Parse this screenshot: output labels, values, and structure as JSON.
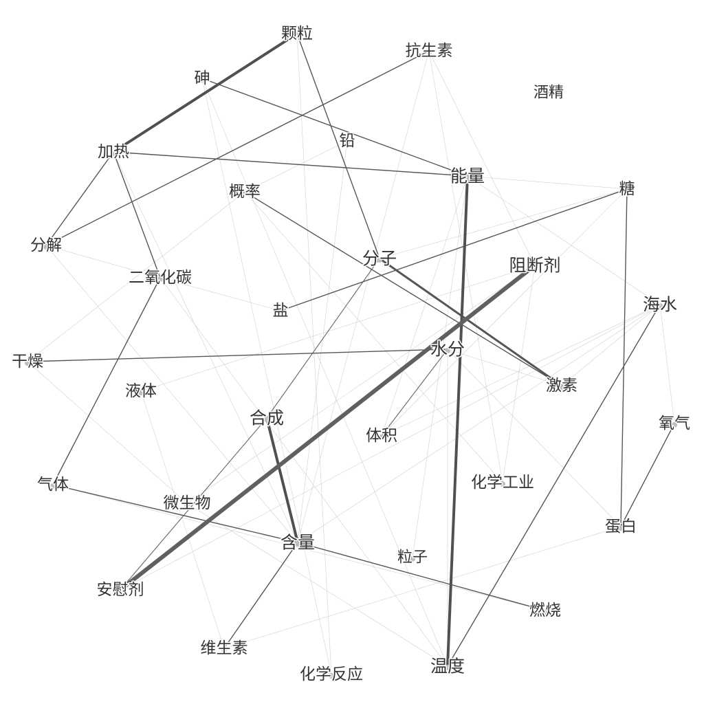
{
  "graph": {
    "nodes": [
      {
        "id": "keli",
        "label": "颗粒",
        "size": "m"
      },
      {
        "id": "kangshengsu",
        "label": "抗生素",
        "size": "m"
      },
      {
        "id": "shen",
        "label": "砷",
        "size": "m"
      },
      {
        "id": "jiujing",
        "label": "酒精",
        "size": "s"
      },
      {
        "id": "qian",
        "label": "铅",
        "size": "m"
      },
      {
        "id": "jiare",
        "label": "加热",
        "size": "m"
      },
      {
        "id": "nengliang",
        "label": "能量",
        "size": "l"
      },
      {
        "id": "gailv",
        "label": "概率",
        "size": "m"
      },
      {
        "id": "tang",
        "label": "糖",
        "size": "m"
      },
      {
        "id": "fenjie",
        "label": "分解",
        "size": "m"
      },
      {
        "id": "eryanghuatan",
        "label": "二氧化碳",
        "size": "m"
      },
      {
        "id": "fenzi",
        "label": "分子",
        "size": "l"
      },
      {
        "id": "zuduanji",
        "label": "阻断剂",
        "size": "l"
      },
      {
        "id": "haishui",
        "label": "海水",
        "size": "l"
      },
      {
        "id": "yan",
        "label": "盐",
        "size": "m"
      },
      {
        "id": "ganzao",
        "label": "干燥",
        "size": "m"
      },
      {
        "id": "shuifen",
        "label": "水分",
        "size": "l"
      },
      {
        "id": "jisu",
        "label": "激素",
        "size": "m"
      },
      {
        "id": "yeti",
        "label": "液体",
        "size": "m"
      },
      {
        "id": "hecheng",
        "label": "合成",
        "size": "l"
      },
      {
        "id": "tiji",
        "label": "体积",
        "size": "m"
      },
      {
        "id": "yangqi",
        "label": "氧气",
        "size": "m"
      },
      {
        "id": "qiti",
        "label": "气体",
        "size": "m"
      },
      {
        "id": "weishengwu",
        "label": "微生物",
        "size": "m"
      },
      {
        "id": "huaxuegongye",
        "label": "化学工业",
        "size": "m"
      },
      {
        "id": "hanliang",
        "label": "含量",
        "size": "l"
      },
      {
        "id": "danbai",
        "label": "蛋白",
        "size": "m"
      },
      {
        "id": "lizi",
        "label": "粒子",
        "size": "s"
      },
      {
        "id": "anweiji",
        "label": "安慰剂",
        "size": "m"
      },
      {
        "id": "ranshao",
        "label": "燃烧",
        "size": "m"
      },
      {
        "id": "weishengsu",
        "label": "维生素",
        "size": "m"
      },
      {
        "id": "huaxuefanying",
        "label": "化学反应",
        "size": "m"
      },
      {
        "id": "wendu",
        "label": "温度",
        "size": "l"
      }
    ],
    "edges": [
      {
        "source": "jiare",
        "target": "keli",
        "weight": 4
      },
      {
        "source": "anweiji",
        "target": "zuduanji",
        "weight": 6
      },
      {
        "source": "nengliang",
        "target": "wendu",
        "weight": 4
      },
      {
        "source": "hecheng",
        "target": "hanliang",
        "weight": 4
      },
      {
        "source": "fenzi",
        "target": "jisu",
        "weight": 3
      },
      {
        "source": "shen",
        "target": "nengliang",
        "weight": 2
      },
      {
        "source": "jiare",
        "target": "nengliang",
        "weight": 2
      },
      {
        "source": "jiare",
        "target": "fenjie",
        "weight": 2
      },
      {
        "source": "jiare",
        "target": "eryanghuatan",
        "weight": 2
      },
      {
        "source": "fenjie",
        "target": "kangshengsu",
        "weight": 2
      },
      {
        "source": "keli",
        "target": "fenzi",
        "weight": 2
      },
      {
        "source": "gailv",
        "target": "jisu",
        "weight": 2
      },
      {
        "source": "yan",
        "target": "tang",
        "weight": 2
      },
      {
        "source": "ganzao",
        "target": "shuifen",
        "weight": 2
      },
      {
        "source": "eryanghuatan",
        "target": "qiti",
        "weight": 2
      },
      {
        "source": "qiti",
        "target": "hanliang",
        "weight": 2
      },
      {
        "source": "hanliang",
        "target": "ranshao",
        "weight": 2
      },
      {
        "source": "hanliang",
        "target": "weishengsu",
        "weight": 2
      },
      {
        "source": "haishui",
        "target": "wendu",
        "weight": 2
      },
      {
        "source": "tang",
        "target": "danbai",
        "weight": 2
      },
      {
        "source": "yangqi",
        "target": "danbai",
        "weight": 2
      },
      {
        "source": "fenzi",
        "target": "hecheng",
        "weight": 1.5
      },
      {
        "source": "shuifen",
        "target": "tiji",
        "weight": 1.5
      },
      {
        "source": "hecheng",
        "target": "anweiji",
        "weight": 1.5
      },
      {
        "source": "kangshengsu",
        "target": "hanliang",
        "weight": 0.5
      },
      {
        "source": "kangshengsu",
        "target": "zuduanji",
        "weight": 0.5
      },
      {
        "source": "keli",
        "target": "huaxuefanying",
        "weight": 0.5
      },
      {
        "source": "shen",
        "target": "wendu",
        "weight": 0.5
      },
      {
        "source": "nengliang",
        "target": "tang",
        "weight": 0.5
      },
      {
        "source": "nengliang",
        "target": "tiji",
        "weight": 0.5
      },
      {
        "source": "nengliang",
        "target": "haishui",
        "weight": 0.5
      },
      {
        "source": "tang",
        "target": "fenzi",
        "weight": 0.5
      },
      {
        "source": "tang",
        "target": "tiji",
        "weight": 0.5
      },
      {
        "source": "haishui",
        "target": "tiji",
        "weight": 0.5
      },
      {
        "source": "haishui",
        "target": "hanliang",
        "weight": 0.5
      },
      {
        "source": "haishui",
        "target": "anweiji",
        "weight": 0.5
      },
      {
        "source": "haishui",
        "target": "yangqi",
        "weight": 0.5
      },
      {
        "source": "haishui",
        "target": "jisu",
        "weight": 0.5
      },
      {
        "source": "fenjie",
        "target": "hanliang",
        "weight": 0.5
      },
      {
        "source": "fenjie",
        "target": "eryanghuatan",
        "weight": 0.5
      },
      {
        "source": "eryanghuatan",
        "target": "yan",
        "weight": 0.5
      },
      {
        "source": "eryanghuatan",
        "target": "wendu",
        "weight": 0.5
      },
      {
        "source": "ganzao",
        "target": "weishengwu",
        "weight": 0.5
      },
      {
        "source": "ganzao",
        "target": "gailv",
        "weight": 0.5
      },
      {
        "source": "yeti",
        "target": "weishengsu",
        "weight": 0.5
      },
      {
        "source": "yeti",
        "target": "zuduanji",
        "weight": 0.5
      },
      {
        "source": "qian",
        "target": "hanliang",
        "weight": 0.5
      },
      {
        "source": "qian",
        "target": "gailv",
        "weight": 0.5
      },
      {
        "source": "jiare",
        "target": "hanliang",
        "weight": 0.5
      },
      {
        "source": "danbai",
        "target": "weishengsu",
        "weight": 0.5
      },
      {
        "source": "danbai",
        "target": "shuifen",
        "weight": 0.5
      },
      {
        "source": "huaxuegongye",
        "target": "zuduanji",
        "weight": 0.5
      },
      {
        "source": "huaxuegongye",
        "target": "kangshengsu",
        "weight": 0.5
      },
      {
        "source": "huaxuegongye",
        "target": "gailv",
        "weight": 0.5
      },
      {
        "source": "shuifen",
        "target": "wendu",
        "weight": 0.5
      },
      {
        "source": "shuifen",
        "target": "jisu",
        "weight": 0.5
      },
      {
        "source": "wendu",
        "target": "weishengwu",
        "weight": 0.5
      },
      {
        "source": "lizi",
        "target": "nengliang",
        "weight": 0.5
      },
      {
        "source": "qiti",
        "target": "ranshao",
        "weight": 0.5
      },
      {
        "source": "shen",
        "target": "huaxuefanying",
        "weight": 0.5
      },
      {
        "source": "weishengwu",
        "target": "zuduanji",
        "weight": 0.5
      }
    ]
  }
}
